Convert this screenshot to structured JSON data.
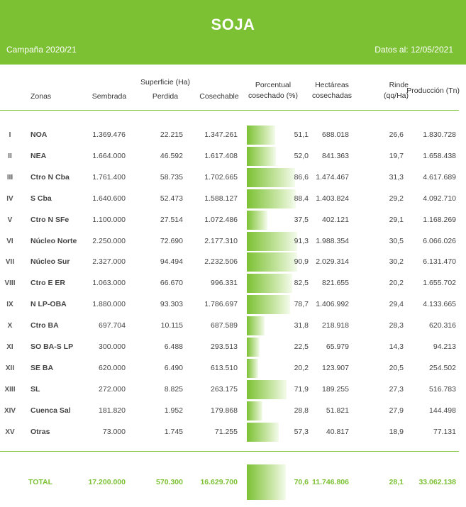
{
  "header": {
    "title": "SOJA",
    "campaign": "Campaña 2020/21",
    "date": "Datos al: 12/05/2021"
  },
  "columns": {
    "zonas": "Zonas",
    "superficie": "Superficie (Ha)",
    "sembrada": "Sembrada",
    "perdida": "Perdida",
    "cosechable": "Cosechable",
    "porcentual_1": "Porcentual",
    "porcentual_2": "cosechado (%)",
    "hectareas_1": "Hectáreas",
    "hectareas_2": "cosechadas",
    "rinde_1": "Rinde",
    "rinde_2": "(qq/Ha)",
    "produccion": "Producción (Tn)"
  },
  "rows": [
    {
      "num": "I",
      "zona": "NOA",
      "sembrada": "1.369.476",
      "perdida": "22.215",
      "cosechable": "1.347.261",
      "pct": "51,1",
      "pct_value": 51.1,
      "hectareas": "688.018",
      "rinde": "26,6",
      "produccion": "1.830.728"
    },
    {
      "num": "II",
      "zona": "NEA",
      "sembrada": "1.664.000",
      "perdida": "46.592",
      "cosechable": "1.617.408",
      "pct": "52,0",
      "pct_value": 52.0,
      "hectareas": "841.363",
      "rinde": "19,7",
      "produccion": "1.658.438"
    },
    {
      "num": "III",
      "zona": "Ctro N Cba",
      "sembrada": "1.761.400",
      "perdida": "58.735",
      "cosechable": "1.702.665",
      "pct": "86,6",
      "pct_value": 86.6,
      "hectareas": "1.474.467",
      "rinde": "31,3",
      "produccion": "4.617.689"
    },
    {
      "num": "IV",
      "zona": "S Cba",
      "sembrada": "1.640.600",
      "perdida": "52.473",
      "cosechable": "1.588.127",
      "pct": "88,4",
      "pct_value": 88.4,
      "hectareas": "1.403.824",
      "rinde": "29,2",
      "produccion": "4.092.710"
    },
    {
      "num": "V",
      "zona": "Ctro N SFe",
      "sembrada": "1.100.000",
      "perdida": "27.514",
      "cosechable": "1.072.486",
      "pct": "37,5",
      "pct_value": 37.5,
      "hectareas": "402.121",
      "rinde": "29,1",
      "produccion": "1.168.269"
    },
    {
      "num": "VI",
      "zona": "Núcleo Norte",
      "sembrada": "2.250.000",
      "perdida": "72.690",
      "cosechable": "2.177.310",
      "pct": "91,3",
      "pct_value": 91.3,
      "hectareas": "1.988.354",
      "rinde": "30,5",
      "produccion": "6.066.026"
    },
    {
      "num": "VII",
      "zona": "Núcleo Sur",
      "sembrada": "2.327.000",
      "perdida": "94.494",
      "cosechable": "2.232.506",
      "pct": "90,9",
      "pct_value": 90.9,
      "hectareas": "2.029.314",
      "rinde": "30,2",
      "produccion": "6.131.470"
    },
    {
      "num": "VIII",
      "zona": "Ctro E ER",
      "sembrada": "1.063.000",
      "perdida": "66.670",
      "cosechable": "996.331",
      "pct": "82,5",
      "pct_value": 82.5,
      "hectareas": "821.655",
      "rinde": "20,2",
      "produccion": "1.655.702"
    },
    {
      "num": "IX",
      "zona": "N LP-OBA",
      "sembrada": "1.880.000",
      "perdida": "93.303",
      "cosechable": "1.786.697",
      "pct": "78,7",
      "pct_value": 78.7,
      "hectareas": "1.406.992",
      "rinde": "29,4",
      "produccion": "4.133.665"
    },
    {
      "num": "X",
      "zona": "Ctro BA",
      "sembrada": "697.704",
      "perdida": "10.115",
      "cosechable": "687.589",
      "pct": "31,8",
      "pct_value": 31.8,
      "hectareas": "218.918",
      "rinde": "28,3",
      "produccion": "620.316"
    },
    {
      "num": "XI",
      "zona": "SO BA-S LP",
      "sembrada": "300.000",
      "perdida": "6.488",
      "cosechable": "293.513",
      "pct": "22,5",
      "pct_value": 22.5,
      "hectareas": "65.979",
      "rinde": "14,3",
      "produccion": "94.213"
    },
    {
      "num": "XII",
      "zona": "SE BA",
      "sembrada": "620.000",
      "perdida": "6.490",
      "cosechable": "613.510",
      "pct": "20,2",
      "pct_value": 20.2,
      "hectareas": "123.907",
      "rinde": "20,5",
      "produccion": "254.502"
    },
    {
      "num": "XIII",
      "zona": "SL",
      "sembrada": "272.000",
      "perdida": "8.825",
      "cosechable": "263.175",
      "pct": "71,9",
      "pct_value": 71.9,
      "hectareas": "189.255",
      "rinde": "27,3",
      "produccion": "516.783"
    },
    {
      "num": "XIV",
      "zona": "Cuenca Sal",
      "sembrada": "181.820",
      "perdida": "1.952",
      "cosechable": "179.868",
      "pct": "28,8",
      "pct_value": 28.8,
      "hectareas": "51.821",
      "rinde": "27,9",
      "produccion": "144.498"
    },
    {
      "num": "XV",
      "zona": "Otras",
      "sembrada": "73.000",
      "perdida": "1.745",
      "cosechable": "71.255",
      "pct": "57,3",
      "pct_value": 57.3,
      "hectareas": "40.817",
      "rinde": "18,9",
      "produccion": "77.131"
    }
  ],
  "total": {
    "label": "TOTAL",
    "sembrada": "17.200.000",
    "perdida": "570.300",
    "cosechable": "16.629.700",
    "pct": "70,6",
    "pct_value": 70.6,
    "hectareas": "11.746.806",
    "rinde": "28,1",
    "produccion": "33.062.138"
  },
  "colors": {
    "accent": "#7cc133"
  }
}
